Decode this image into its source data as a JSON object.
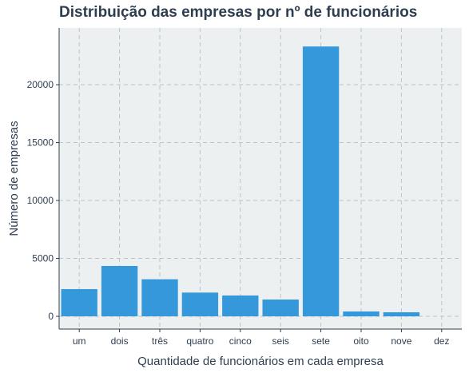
{
  "chart_data": {
    "type": "bar",
    "title": "Distribuição das empresas por nº de funcionários",
    "xlabel": "Quantidade de funcionários em cada empresa",
    "ylabel": "Número de empresas",
    "categories": [
      "um",
      "dois",
      "três",
      "quatro",
      "cinco",
      "seis",
      "sete",
      "oito",
      "nove",
      "dez"
    ],
    "values": [
      2350,
      4350,
      3200,
      2050,
      1800,
      1450,
      23300,
      420,
      350,
      0
    ],
    "ylim": [
      -1100,
      24900
    ],
    "yticks": [
      0,
      5000,
      10000,
      15000,
      20000
    ],
    "grid": true,
    "colors": {
      "bar": "#3498db",
      "panel_background": "#ecf0f1",
      "grid": "#bdc3c7",
      "axis": "#2e3e50",
      "text": "#2e3e50"
    }
  }
}
